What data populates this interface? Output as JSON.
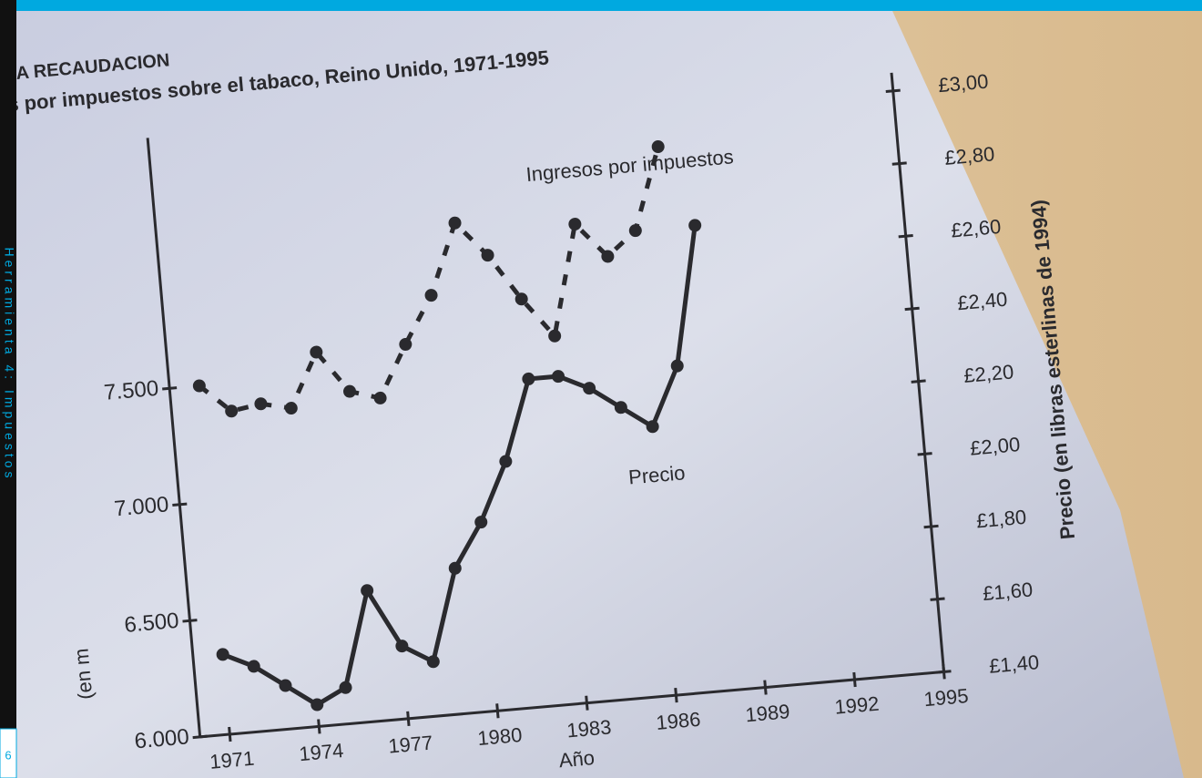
{
  "sidebar": {
    "text": "Herramienta 4: Impuestos",
    "page": "6"
  },
  "chart_data": {
    "type": "line",
    "title": "LA RECAUDACION",
    "subtitle": "s por impuestos sobre el tabaco, Reino Unido, 1971-1995",
    "x_label": "Año",
    "y_label": "(en m",
    "y2_label": "Precio (en libras esterlinas de 1994)",
    "x": [
      1971,
      1972,
      1973,
      1974,
      1975,
      1976,
      1977,
      1978,
      1979,
      1980,
      1981,
      1982,
      1983,
      1984,
      1985,
      1986,
      1987,
      1988
    ],
    "series": [
      {
        "name": "Ingresos por impuestos",
        "color": "#2a2a2e",
        "dashed": true,
        "values": [
          7500,
          7380,
          7400,
          7370,
          7600,
          7420,
          7380,
          7600,
          7800,
          8100,
          7950,
          7750,
          7580,
          8050,
          7900,
          8000,
          8350,
          null
        ]
      },
      {
        "name": "Precio",
        "color": "#2a2a2e",
        "dashed": false,
        "axis": "y2",
        "values": [
          1.62,
          1.58,
          1.52,
          1.46,
          1.5,
          1.76,
          1.6,
          1.55,
          1.8,
          1.92,
          2.08,
          2.3,
          2.3,
          2.26,
          2.2,
          2.14,
          2.3,
          2.68
        ]
      }
    ],
    "xlim": [
      1970,
      1995
    ],
    "xticks": [
      1971,
      1974,
      1977,
      1980,
      1983,
      1986,
      1989,
      1992,
      1995
    ],
    "ylim": [
      6000,
      8500
    ],
    "yticks": [
      {
        "value": 6000,
        "label": "6.000"
      },
      {
        "value": 6500,
        "label": "6.500"
      },
      {
        "value": 7000,
        "label": "7.000"
      },
      {
        "value": 7500,
        "label": "7.500"
      }
    ],
    "y2lim": [
      1.4,
      3.0
    ],
    "y2ticks": [
      {
        "value": 1.4,
        "label": "£1,40"
      },
      {
        "value": 1.6,
        "label": "£1,60"
      },
      {
        "value": 1.8,
        "label": "£1,80"
      },
      {
        "value": 2.0,
        "label": "£2,00"
      },
      {
        "value": 2.2,
        "label": "£2,20"
      },
      {
        "value": 2.4,
        "label": "£2,40"
      },
      {
        "value": 2.6,
        "label": "£2,60"
      },
      {
        "value": 2.8,
        "label": "£2,80"
      },
      {
        "value": 3.0,
        "label": "£3,00"
      }
    ]
  }
}
